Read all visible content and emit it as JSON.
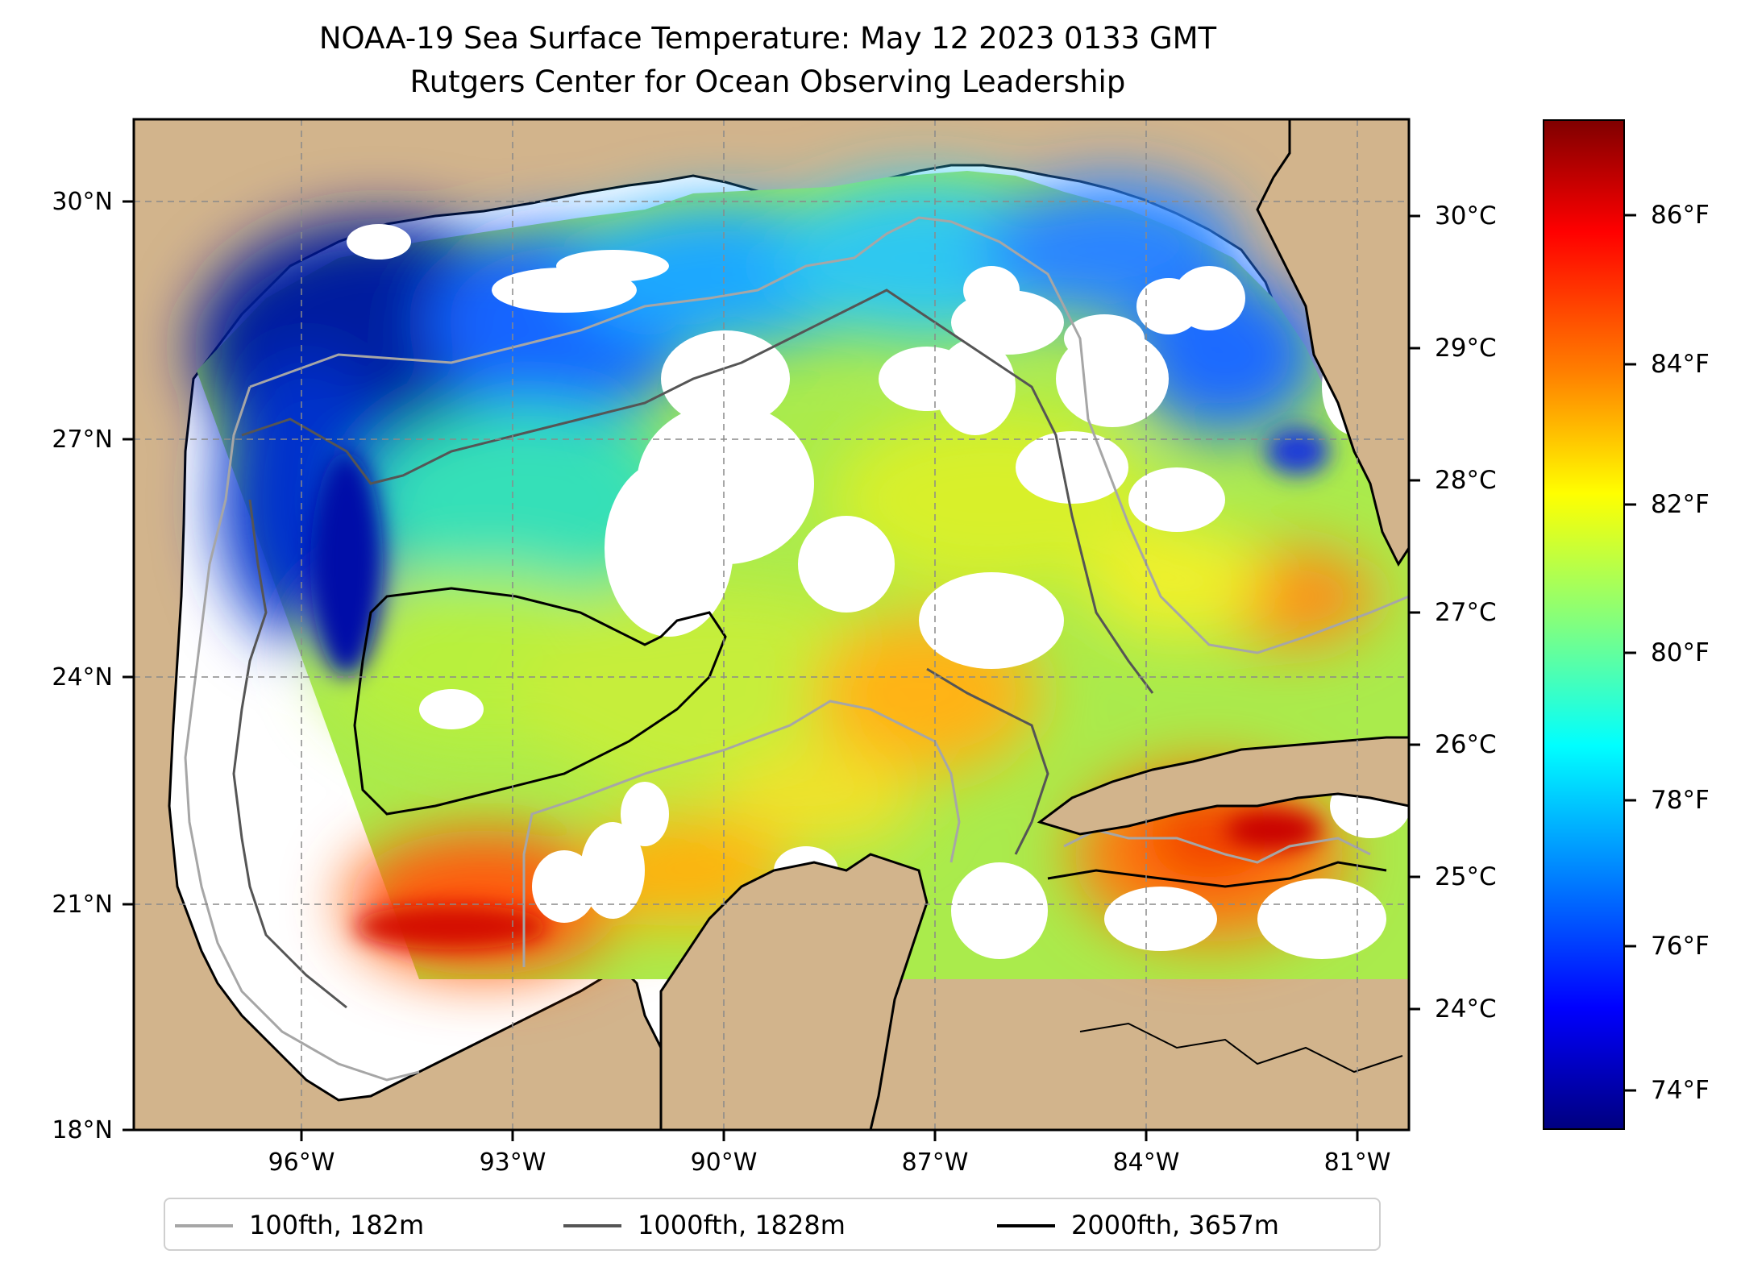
{
  "title": {
    "line1": "NOAA-19 Sea Surface Temperature: May 12 2023 0133 GMT",
    "line2": "Rutgers Center for Ocean Observing Leadership"
  },
  "map": {
    "lat_ticks": [
      "30°N",
      "27°N",
      "24°N",
      "21°N",
      "18°N"
    ],
    "lon_ticks": [
      "96°W",
      "93°W",
      "90°W",
      "87°W",
      "84°W",
      "81°W"
    ],
    "land_color": "#d2b48c",
    "missing_data_color": "#ffffff"
  },
  "colorbar": {
    "celsius_ticks": [
      "30°C",
      "29°C",
      "28°C",
      "27°C",
      "26°C",
      "25°C",
      "24°C"
    ],
    "fahrenheit_ticks": [
      "86°F",
      "84°F",
      "82°F",
      "80°F",
      "78°F",
      "76°F",
      "74°F"
    ],
    "colormap": "jet"
  },
  "legend": {
    "items": [
      {
        "label": "100fth, 182m",
        "color": "#a6a6a6"
      },
      {
        "label": "1000fth, 1828m",
        "color": "#555555"
      },
      {
        "label": "2000fth, 3657m",
        "color": "#000000"
      }
    ]
  }
}
